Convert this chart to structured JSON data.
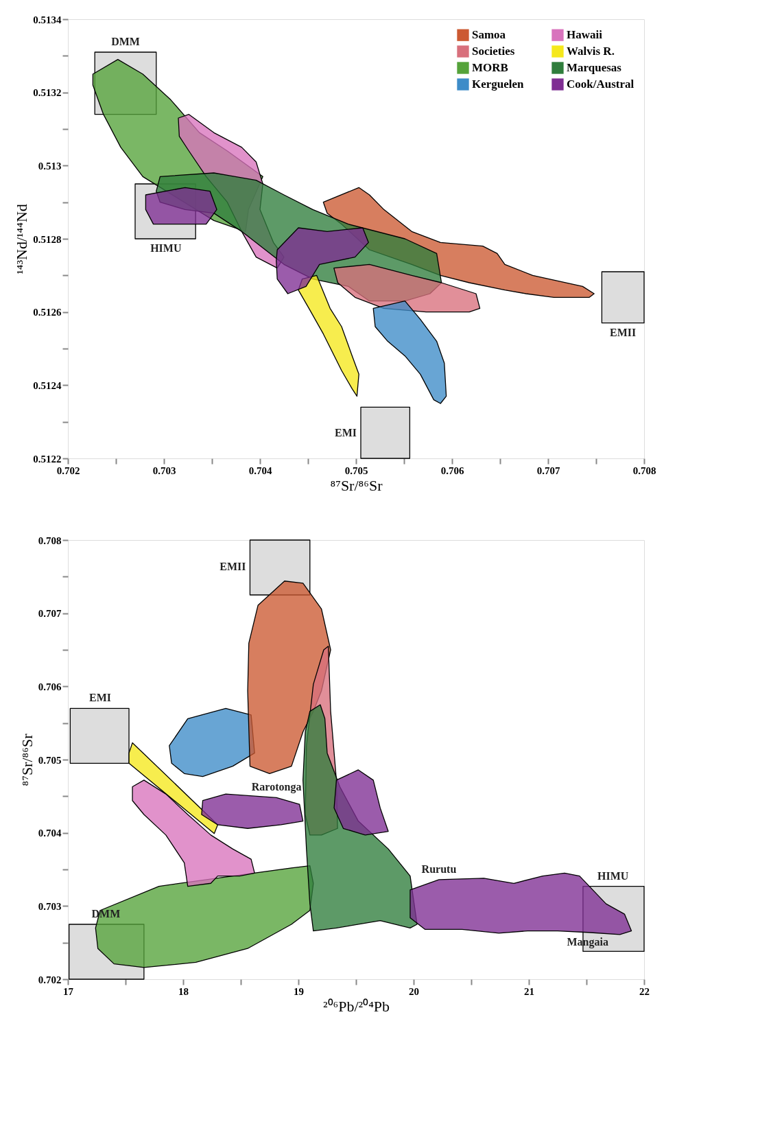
{
  "chart_data": [
    {
      "type": "area",
      "xlabel": "⁸⁷Sr/⁸⁶Sr",
      "ylabel": "¹⁴³Nd/¹⁴⁴Nd",
      "xlim": [
        0.702,
        0.708
      ],
      "ylim": [
        0.5122,
        0.5134
      ],
      "xticks": [
        0.702,
        {
          "value": 0.7025,
          "label": null
        },
        0.703,
        {
          "value": 0.7035,
          "label": null
        },
        0.704,
        {
          "value": 0.7045,
          "label": null
        },
        0.705,
        {
          "value": 0.7055,
          "label": null
        },
        0.706,
        {
          "value": 0.7065,
          "label": null
        },
        0.707,
        {
          "value": 0.7075,
          "label": null
        },
        0.708
      ],
      "yticks": [
        0.5122,
        {
          "value": 0.5123,
          "label": null
        },
        0.5124,
        {
          "value": 0.5125,
          "label": null
        },
        0.5126,
        {
          "value": 0.5127,
          "label": null
        },
        0.5128,
        {
          "value": 0.5129,
          "label": null
        },
        0.513,
        {
          "value": 0.5131,
          "label": null
        },
        0.5132,
        {
          "value": 0.5133,
          "label": null
        },
        0.5134
      ],
      "grid": false,
      "legend": "top right",
      "series": [
        {
          "color": "#d4d4d4",
          "x": [
            0.70228,
            0.70292,
            0.70292,
            0.70228
          ],
          "values": [
            0.51331,
            0.51331,
            0.51314,
            0.51314
          ]
        },
        {
          "color": "#d4d4d4",
          "x": [
            0.7027,
            0.70333,
            0.70333,
            0.7027
          ],
          "values": [
            0.51295,
            0.51295,
            0.5128,
            0.5128
          ]
        },
        {
          "color": "#d4d4d4",
          "x": [
            0.70756,
            0.708,
            0.708,
            0.70756
          ],
          "values": [
            0.51271,
            0.51271,
            0.51257,
            0.51257
          ]
        },
        {
          "color": "#d4d4d4",
          "x": [
            0.70505,
            0.70556,
            0.70556,
            0.70505
          ],
          "values": [
            0.51234,
            0.51234,
            0.5122,
            0.5122
          ]
        },
        {
          "name": "Samoa",
          "color": "#cc5a32",
          "x": [
            0.70466,
            0.70503,
            0.70514,
            0.70529,
            0.70558,
            0.70588,
            0.70632,
            0.70647,
            0.70655,
            0.70684,
            0.70736,
            0.70748,
            0.70743,
            0.70706,
            0.70677,
            0.70655,
            0.70618,
            0.70588,
            0.70558,
            0.70514,
            0.70485,
            0.7047
          ],
          "values": [
            0.5129,
            0.51294,
            0.51292,
            0.51288,
            0.51282,
            0.51279,
            0.51278,
            0.51276,
            0.51273,
            0.5127,
            0.51267,
            0.51265,
            0.51264,
            0.51264,
            0.51265,
            0.51266,
            0.51268,
            0.5127,
            0.51273,
            0.51277,
            0.51284,
            0.51287
          ]
        },
        {
          "name": "MORB",
          "color": "#55a33a",
          "x": [
            0.70226,
            0.70252,
            0.70278,
            0.70307,
            0.70337,
            0.70366,
            0.70403,
            0.70388,
            0.70385,
            0.70352,
            0.70315,
            0.70278,
            0.70255,
            0.70237,
            0.70226
          ],
          "values": [
            0.51325,
            0.51329,
            0.51325,
            0.51318,
            0.51309,
            0.51304,
            0.51297,
            0.51288,
            0.51282,
            0.51285,
            0.51291,
            0.51297,
            0.51305,
            0.51314,
            0.51322
          ]
        },
        {
          "name": "Hawaii",
          "color": "#d873bd",
          "x": [
            0.70315,
            0.70326,
            0.70352,
            0.70381,
            0.70396,
            0.70403,
            0.704,
            0.70414,
            0.70425,
            0.70418,
            0.70396,
            0.70381,
            0.70366,
            0.70344,
            0.70326,
            0.70316
          ],
          "values": [
            0.51313,
            0.51314,
            0.51309,
            0.51305,
            0.51301,
            0.51295,
            0.51288,
            0.51279,
            0.51275,
            0.51272,
            0.51275,
            0.51282,
            0.5129,
            0.51297,
            0.51304,
            0.51308
          ]
        },
        {
          "name": "Marquesas",
          "color": "#2f7d3c",
          "x": [
            0.70296,
            0.70352,
            0.70396,
            0.70425,
            0.70455,
            0.70492,
            0.70551,
            0.70584,
            0.70589,
            0.70577,
            0.70551,
            0.70514,
            0.70492,
            0.70455,
            0.70425,
            0.70381,
            0.70352,
            0.70322,
            0.70296,
            0.70292
          ],
          "values": [
            0.51297,
            0.51298,
            0.51296,
            0.51292,
            0.51288,
            0.51284,
            0.5128,
            0.51276,
            0.51268,
            0.51265,
            0.51263,
            0.51263,
            0.51267,
            0.51269,
            0.51273,
            0.51282,
            0.51287,
            0.51288,
            0.5129,
            0.51293
          ]
        },
        {
          "name": "Societies",
          "color": "#d8707c",
          "x": [
            0.70477,
            0.70514,
            0.70558,
            0.70589,
            0.70625,
            0.70629,
            0.70618,
            0.70573,
            0.70529,
            0.70499,
            0.70481
          ],
          "values": [
            0.51272,
            0.51273,
            0.5127,
            0.51268,
            0.51265,
            0.51261,
            0.5126,
            0.5126,
            0.51261,
            0.51264,
            0.51268
          ]
        },
        {
          "name": "Kerguelen",
          "color": "#3d8cc8",
          "x": [
            0.70518,
            0.70551,
            0.70567,
            0.70584,
            0.70592,
            0.70594,
            0.70588,
            0.70581,
            0.70567,
            0.70551,
            0.70533,
            0.7052
          ],
          "values": [
            0.51261,
            0.51263,
            0.51258,
            0.51252,
            0.51246,
            0.51237,
            0.51235,
            0.51236,
            0.51243,
            0.51248,
            0.51252,
            0.51256
          ]
        },
        {
          "name": "Walvis R.",
          "color": "#f5e81c",
          "x": [
            0.70444,
            0.70459,
            0.70473,
            0.70485,
            0.70496,
            0.70503,
            0.70501,
            0.70496,
            0.70485,
            0.70466,
            0.70451,
            0.7044
          ],
          "values": [
            0.51269,
            0.5127,
            0.51261,
            0.51256,
            0.51248,
            0.51243,
            0.51237,
            0.51239,
            0.51244,
            0.51254,
            0.51261,
            0.51266
          ]
        },
        {
          "name": "Cook/Austral",
          "color": "#7f2e93",
          "x": [
            0.70281,
            0.70322,
            0.70348,
            0.70355,
            0.70344,
            0.70315,
            0.70289,
            0.70281
          ],
          "values": [
            0.51292,
            0.51294,
            0.51293,
            0.51288,
            0.51284,
            0.51284,
            0.51284,
            0.51288
          ]
        },
        {
          "color": "#7f2e93",
          "x": [
            0.70418,
            0.7044,
            0.7047,
            0.70507,
            0.70513,
            0.70499,
            0.70462,
            0.70448,
            0.70429,
            0.70418,
            0.70417
          ],
          "values": [
            0.51277,
            0.51283,
            0.51282,
            0.51283,
            0.51279,
            0.51275,
            0.51273,
            0.51267,
            0.51265,
            0.51269,
            0.51274
          ]
        }
      ],
      "annotations": [
        {
          "text": "DMM",
          "x": 0.7026,
          "y": 0.51331
        },
        {
          "text": "HIMU",
          "x": 0.70302,
          "y": 0.5128
        },
        {
          "text": "EMII",
          "x": 0.70778,
          "y": 0.51257
        },
        {
          "text": "EMI",
          "x": 0.70505,
          "y": 0.51227
        }
      ]
    },
    {
      "type": "area",
      "xlabel": "²⁰⁶Pb/²⁰⁴Pb",
      "ylabel": "⁸⁷Sr/⁸⁶Sr",
      "xlim": [
        17,
        22
      ],
      "ylim": [
        0.702,
        0.708
      ],
      "xticks": [
        17,
        {
          "value": 17.5,
          "label": null
        },
        18,
        {
          "value": 18.5,
          "label": null
        },
        19,
        {
          "value": 19.5,
          "label": null
        },
        20,
        {
          "value": 20.5,
          "label": null
        },
        21,
        {
          "value": 21.5,
          "label": null
        },
        22
      ],
      "yticks": [
        0.702,
        {
          "value": 0.7025,
          "label": null
        },
        0.703,
        {
          "value": 0.7035,
          "label": null
        },
        0.704,
        {
          "value": 0.7045,
          "label": null
        },
        0.705,
        {
          "value": 0.7055,
          "label": null
        },
        0.706,
        {
          "value": 0.7065,
          "label": null
        },
        0.707,
        {
          "value": 0.7075,
          "label": null
        },
        0.708
      ],
      "grid": false,
      "legend": false,
      "series": [
        {
          "color": "#d4d4d4",
          "x": [
            18.58,
            19.1,
            19.1,
            18.58
          ],
          "values": [
            0.708,
            0.708,
            0.70725,
            0.70725
          ]
        },
        {
          "color": "#d4d4d4",
          "x": [
            17.02,
            17.53,
            17.53,
            17.02
          ],
          "values": [
            0.7057,
            0.7057,
            0.70495,
            0.70495
          ]
        },
        {
          "color": "#d4d4d4",
          "x": [
            17.01,
            17.66,
            17.66,
            17.01
          ],
          "values": [
            0.70275,
            0.70275,
            0.702,
            0.702
          ]
        },
        {
          "color": "#d4d4d4",
          "x": [
            21.47,
            22,
            22,
            21.47
          ],
          "values": [
            0.70327,
            0.70327,
            0.70238,
            0.70238
          ]
        },
        {
          "color": "#55a33a",
          "x": [
            17.28,
            17.79,
            18.43,
            18.94,
            19.1,
            19.13,
            19.1,
            18.94,
            18.56,
            18.11,
            17.66,
            17.4,
            17.26,
            17.24
          ],
          "values": [
            0.70294,
            0.70327,
            0.70341,
            0.70352,
            0.70355,
            0.70331,
            0.70294,
            0.70275,
            0.70242,
            0.70223,
            0.70216,
            0.70221,
            0.70242,
            0.7027
          ]
        },
        {
          "color": "#d873bd",
          "x": [
            17.56,
            17.66,
            17.85,
            18.04,
            18.24,
            18.43,
            18.59,
            18.62,
            18.49,
            18.3,
            18.24,
            18.04,
            18.01,
            17.85,
            17.66,
            17.56
          ],
          "values": [
            0.70463,
            0.70472,
            0.70453,
            0.70425,
            0.70397,
            0.70378,
            0.70364,
            0.70345,
            0.70341,
            0.70341,
            0.70331,
            0.70327,
            0.70359,
            0.70397,
            0.70425,
            0.70444
          ]
        },
        {
          "color": "#f5e81c",
          "x": [
            17.53,
            17.56,
            18.3,
            18.27,
            17.53
          ],
          "values": [
            0.70509,
            0.70523,
            0.70411,
            0.70399,
            0.70495
          ]
        },
        {
          "color": "#3d8cc8",
          "x": [
            17.88,
            18.04,
            18.37,
            18.59,
            18.62,
            18.43,
            18.17,
            18.01,
            17.9
          ],
          "values": [
            0.70519,
            0.70556,
            0.7057,
            0.70561,
            0.70509,
            0.70491,
            0.70477,
            0.70481,
            0.70495
          ]
        },
        {
          "color": "#cc5a32",
          "x": [
            18.58,
            18.56,
            18.57,
            18.65,
            18.88,
            19.04,
            19.2,
            19.28,
            19.2,
            19.13,
            19.04,
            18.94,
            18.75
          ],
          "values": [
            0.70491,
            0.70594,
            0.70659,
            0.70711,
            0.70744,
            0.70741,
            0.70706,
            0.7065,
            0.70594,
            0.70566,
            0.70538,
            0.70491,
            0.70481
          ]
        },
        {
          "color": "#d8707c",
          "x": [
            19.06,
            19.07,
            19.13,
            19.22,
            19.26,
            19.28,
            19.33,
            19.34,
            19.2,
            19.1
          ],
          "values": [
            0.70425,
            0.70519,
            0.70603,
            0.7065,
            0.70655,
            0.70566,
            0.70472,
            0.70406,
            0.70397,
            0.70397
          ]
        },
        {
          "color": "#2f7d3c",
          "x": [
            19.1,
            19.19,
            19.23,
            19.25,
            19.36,
            19.52,
            19.78,
            19.97,
            20.03,
            19.97,
            19.71,
            19.33,
            19.13,
            19.1,
            19.07,
            19.04,
            19.06
          ],
          "values": [
            0.70566,
            0.70575,
            0.70556,
            0.70509,
            0.70463,
            0.70416,
            0.70378,
            0.70341,
            0.70275,
            0.7027,
            0.7028,
            0.7027,
            0.70266,
            0.70303,
            0.70378,
            0.70472,
            0.70538
          ]
        },
        {
          "color": "#7f2e93",
          "x": [
            18.17,
            18.37,
            18.81,
            19.01,
            19.04,
            18.85,
            18.56,
            18.3,
            18.16
          ],
          "values": [
            0.70444,
            0.70453,
            0.70448,
            0.70439,
            0.70416,
            0.70411,
            0.70406,
            0.70411,
            0.70425
          ]
        },
        {
          "color": "#7f2e93",
          "x": [
            19.33,
            19.52,
            19.65,
            19.71,
            19.78,
            19.58,
            19.39,
            19.31
          ],
          "values": [
            0.70472,
            0.70486,
            0.70472,
            0.70434,
            0.70402,
            0.70397,
            0.70406,
            0.70434
          ]
        },
        {
          "color": "#7f2e93",
          "x": [
            19.97,
            20.22,
            20.61,
            20.87,
            21.12,
            21.31,
            21.44,
            21.67,
            21.83,
            21.89,
            21.79,
            21.51,
            21.25,
            20.99,
            20.74,
            20.42,
            20.1,
            19.97
          ],
          "values": [
            0.70322,
            0.70336,
            0.70338,
            0.70331,
            0.70341,
            0.70345,
            0.70341,
            0.70303,
            0.70289,
            0.70266,
            0.70261,
            0.70264,
            0.70266,
            0.70266,
            0.70263,
            0.70268,
            0.70268,
            0.70284
          ]
        }
      ],
      "annotations": [
        {
          "text": "EMII",
          "x": 18.58,
          "y": 0.70763
        },
        {
          "text": "EMI",
          "x": 17.28,
          "y": 0.7057
        },
        {
          "text": "DMM",
          "x": 17.33,
          "y": 0.70275
        },
        {
          "text": "HIMU",
          "x": 21.73,
          "y": 0.70327
        },
        {
          "text": "Rarotonga",
          "x": 18.81,
          "y": 0.70448
        },
        {
          "text": "Rurutu",
          "x": 20.22,
          "y": 0.70336
        },
        {
          "text": "Mangaia",
          "x": 21.51,
          "y": 0.70264
        }
      ]
    }
  ]
}
